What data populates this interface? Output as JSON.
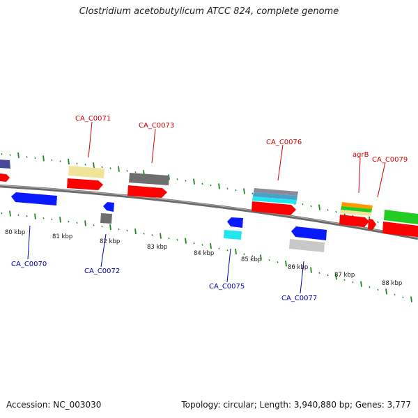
{
  "title": "Clostridium acetobutylicum ATCC 824, complete genome",
  "footer": {
    "accession": "Accession: NC_003030",
    "topology": "Topology: circular; Length: 3,940,880 bp; Genes: 3,777"
  },
  "scale_labels": [
    "80 kbp",
    "81 kbp",
    "82 kbp",
    "83 kbp",
    "84 kbp",
    "85 kbp",
    "86 kbp",
    "87 kbp",
    "88 kbp"
  ],
  "top_labels": [
    "CA_C0071",
    "CA_C0073",
    "CA_C0076",
    "agrB",
    "CA_C0079"
  ],
  "bottom_labels": [
    "CA_C0070",
    "CA_C0072",
    "CA_C0075",
    "CA_C0077"
  ],
  "colors": {
    "backbone": "#7a7a7a",
    "tick": "#1a8a1a",
    "top_label": "#d10000",
    "bottom_label": "#0000b0",
    "red": "#ff0000",
    "blue": "#0a1aff",
    "green": "#22cc22",
    "cyan": "#22e6ee",
    "gray": "#6e6e6e",
    "lightgray": "#c8c8c8",
    "khaki": "#efe49a",
    "navy": "#4a4a9a",
    "orange": "#ff9900"
  }
}
